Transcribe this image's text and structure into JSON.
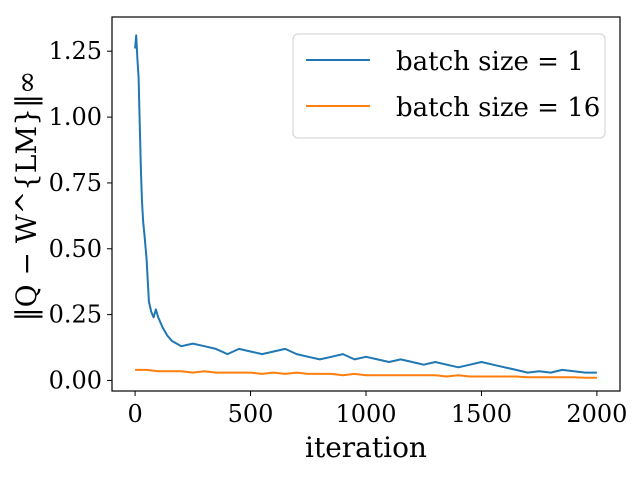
{
  "chart_data": {
    "type": "line",
    "title": "",
    "xlabel": "iteration",
    "ylabel": "‖Q − W^{LM}‖∞",
    "xlim": [
      -100,
      2100
    ],
    "ylim": [
      -0.04,
      1.38
    ],
    "xticks": [
      0,
      500,
      1000,
      1500,
      2000
    ],
    "yticks": [
      0.0,
      0.25,
      0.5,
      0.75,
      1.0,
      1.25
    ],
    "xtick_labels": [
      "0",
      "500",
      "1000",
      "1500",
      "2000"
    ],
    "ytick_labels": [
      "0.00",
      "0.25",
      "0.50",
      "0.75",
      "1.00",
      "1.25"
    ],
    "grid": false,
    "legend_position": "top-right",
    "series": [
      {
        "name": "batch size = 1",
        "color": "#1f77b4",
        "x": [
          0,
          5,
          10,
          15,
          20,
          25,
          30,
          35,
          40,
          50,
          60,
          70,
          80,
          90,
          100,
          120,
          140,
          160,
          180,
          200,
          250,
          300,
          350,
          400,
          450,
          500,
          550,
          600,
          650,
          700,
          750,
          800,
          850,
          900,
          950,
          1000,
          1050,
          1100,
          1150,
          1200,
          1250,
          1300,
          1350,
          1400,
          1450,
          1500,
          1550,
          1600,
          1650,
          1700,
          1750,
          1800,
          1850,
          1900,
          1950,
          2000
        ],
        "y": [
          1.26,
          1.31,
          1.22,
          1.15,
          0.98,
          0.8,
          0.68,
          0.6,
          0.56,
          0.46,
          0.3,
          0.26,
          0.24,
          0.27,
          0.24,
          0.2,
          0.17,
          0.15,
          0.14,
          0.13,
          0.14,
          0.13,
          0.12,
          0.1,
          0.12,
          0.11,
          0.1,
          0.11,
          0.12,
          0.1,
          0.09,
          0.08,
          0.09,
          0.1,
          0.08,
          0.09,
          0.08,
          0.07,
          0.08,
          0.07,
          0.06,
          0.07,
          0.06,
          0.05,
          0.06,
          0.07,
          0.06,
          0.05,
          0.04,
          0.03,
          0.035,
          0.03,
          0.04,
          0.035,
          0.03,
          0.03
        ]
      },
      {
        "name": "batch size = 16",
        "color": "#ff7f0e",
        "x": [
          0,
          50,
          100,
          150,
          200,
          250,
          300,
          350,
          400,
          450,
          500,
          550,
          600,
          650,
          700,
          750,
          800,
          850,
          900,
          950,
          1000,
          1050,
          1100,
          1150,
          1200,
          1250,
          1300,
          1350,
          1400,
          1450,
          1500,
          1550,
          1600,
          1650,
          1700,
          1750,
          1800,
          1850,
          1900,
          1950,
          2000
        ],
        "y": [
          0.04,
          0.04,
          0.035,
          0.035,
          0.035,
          0.03,
          0.035,
          0.03,
          0.03,
          0.03,
          0.03,
          0.025,
          0.03,
          0.025,
          0.03,
          0.025,
          0.025,
          0.025,
          0.02,
          0.025,
          0.02,
          0.02,
          0.02,
          0.02,
          0.02,
          0.02,
          0.02,
          0.015,
          0.02,
          0.015,
          0.015,
          0.015,
          0.015,
          0.015,
          0.012,
          0.012,
          0.012,
          0.012,
          0.012,
          0.01,
          0.01
        ]
      }
    ]
  }
}
